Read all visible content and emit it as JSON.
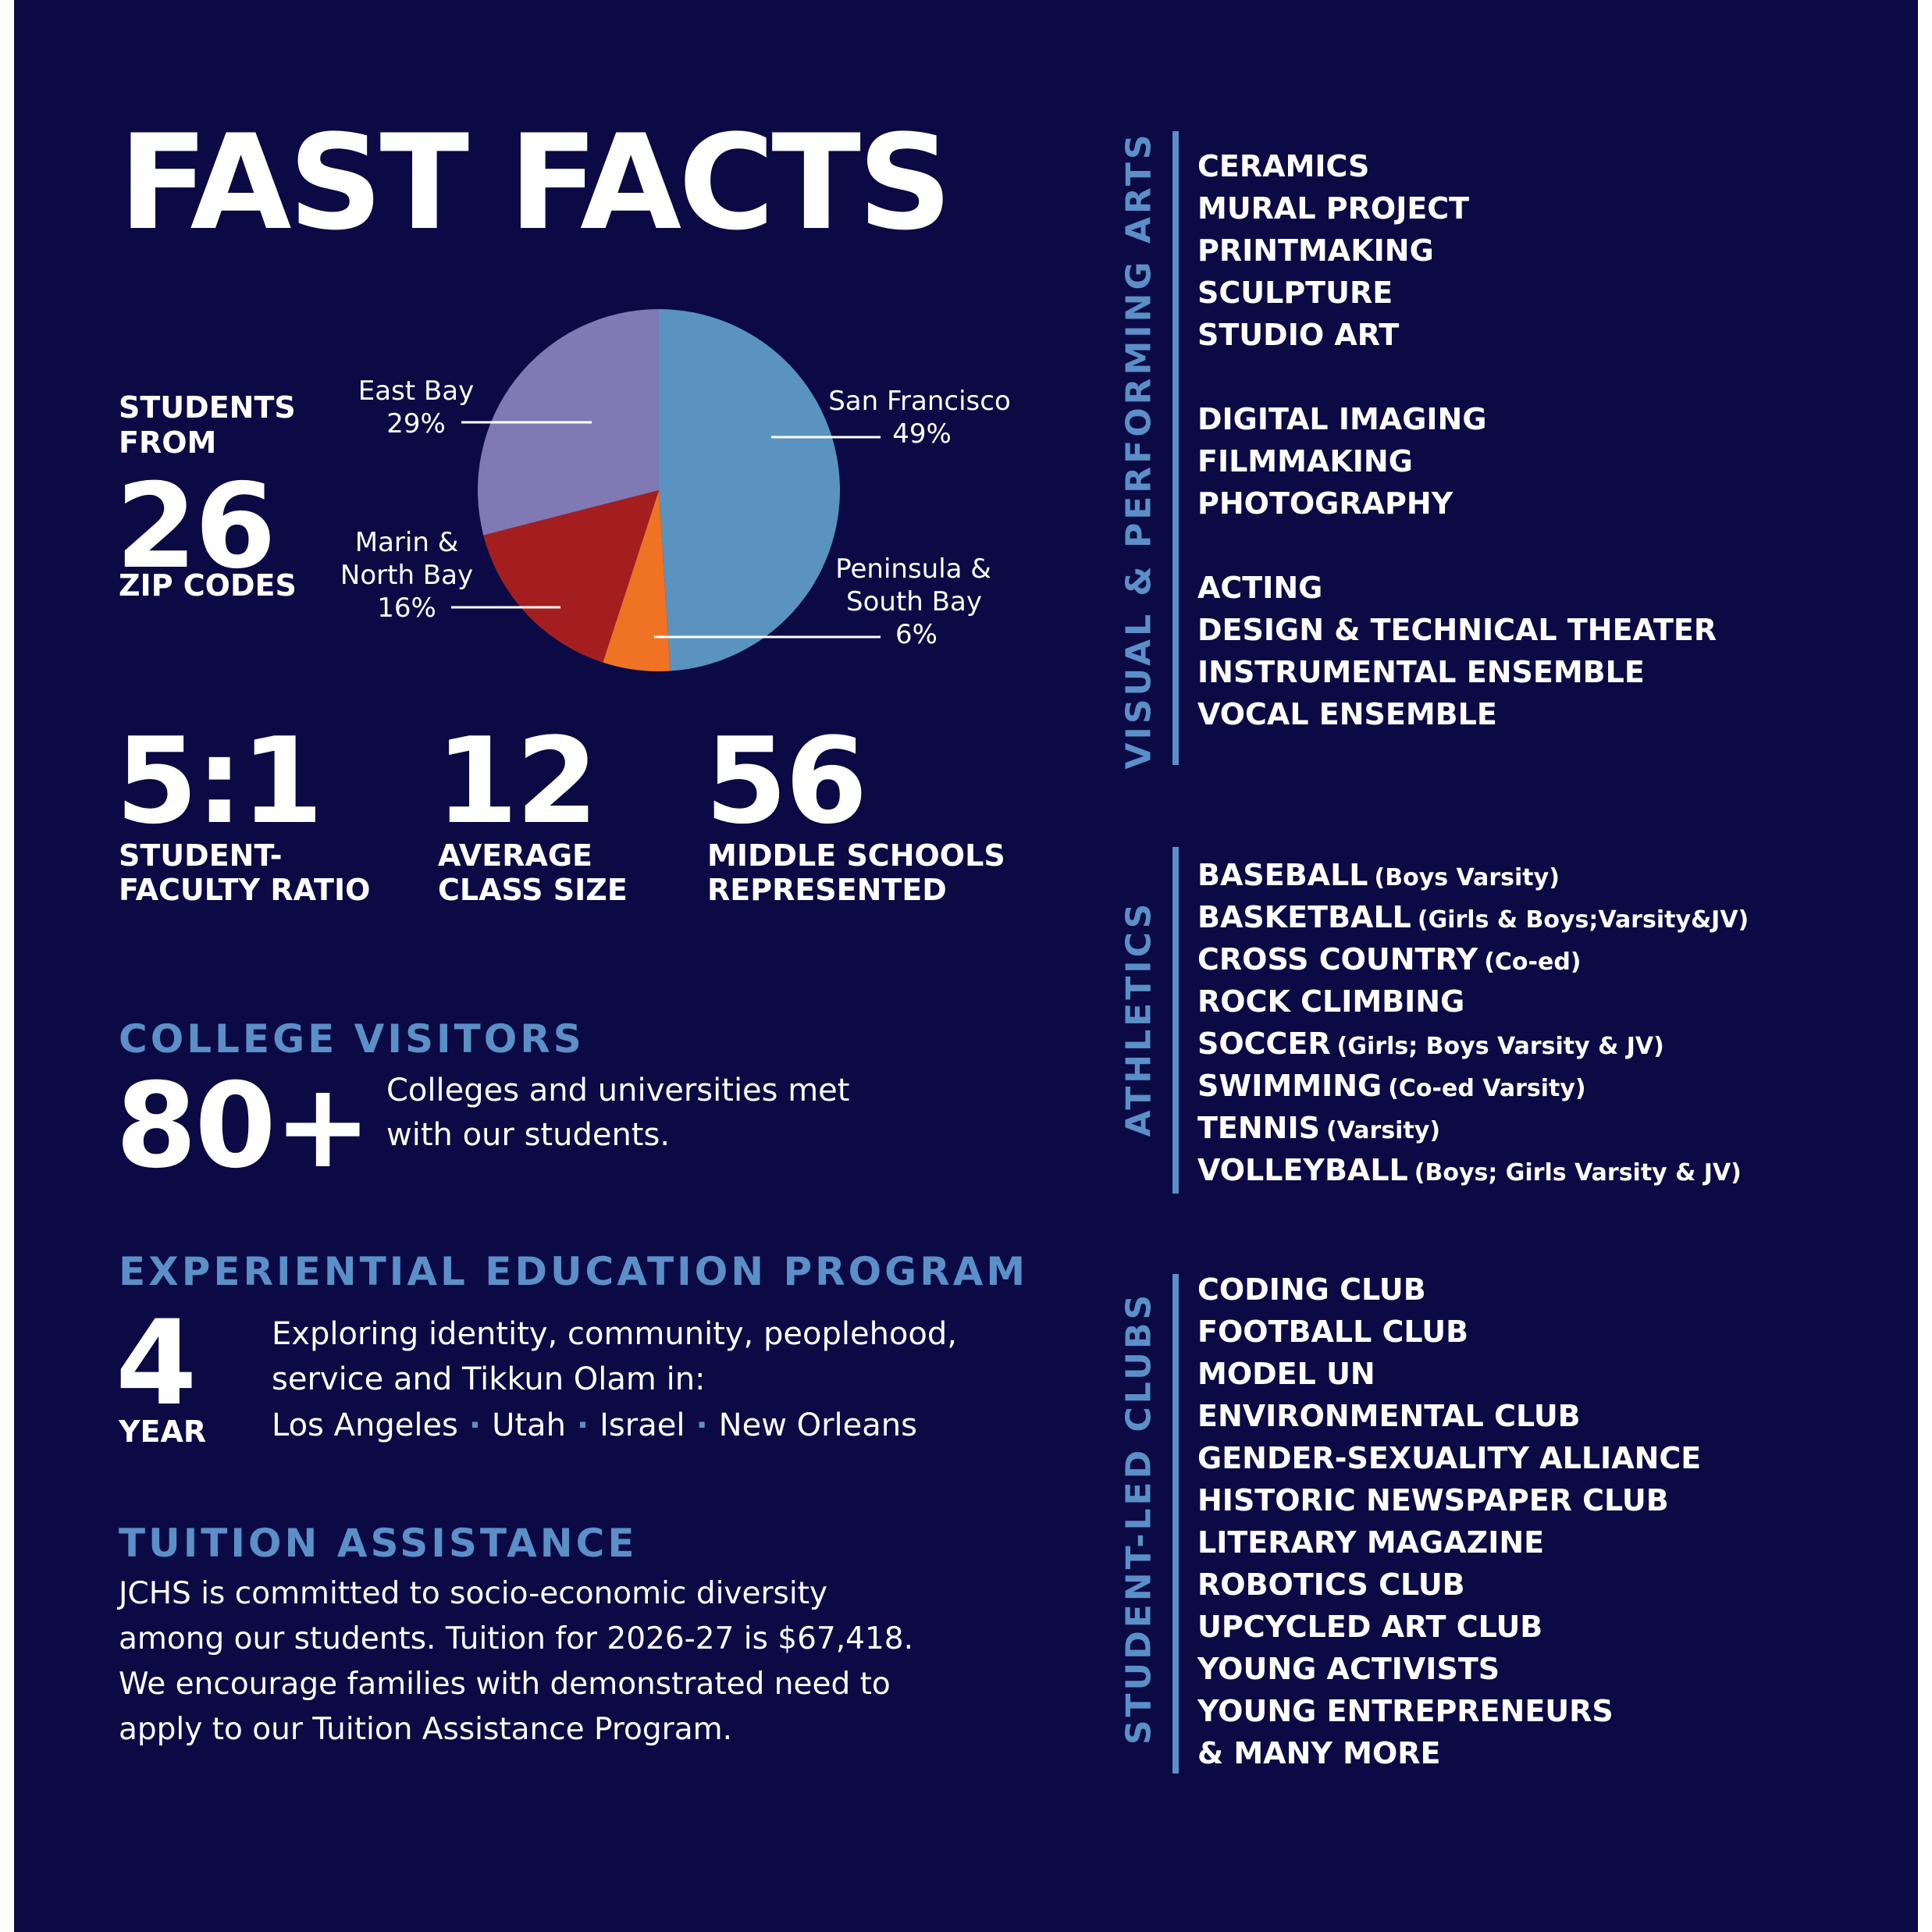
{
  "title": "FAST FACTS",
  "students": {
    "label_top_1": "STUDENTS",
    "label_top_2": "FROM",
    "number": "26",
    "label_bottom": "ZIP CODES"
  },
  "chart_data": {
    "type": "pie",
    "slices": [
      {
        "label_lines": [
          "San Francisco",
          "49%"
        ],
        "value": 49,
        "color": "#5a93c0"
      },
      {
        "label_lines": [
          "Peninsula &",
          "South Bay",
          "6%"
        ],
        "value": 6,
        "color": "#ef7322"
      },
      {
        "label_lines": [
          "Marin &",
          "North Bay",
          "16%"
        ],
        "value": 16,
        "color": "#a41e1f"
      },
      {
        "label_lines": [
          "East Bay",
          "29%"
        ],
        "value": 29,
        "color": "#8079b3"
      }
    ]
  },
  "stats": [
    {
      "number": "5:1",
      "line1": "STUDENT-",
      "line2": "FACULTY RATIO"
    },
    {
      "number": "12",
      "line1": "AVERAGE",
      "line2": "CLASS SIZE"
    },
    {
      "number": "56",
      "line1": "MIDDLE SCHOOLS",
      "line2": "REPRESENTED"
    }
  ],
  "college": {
    "heading": "COLLEGE VISITORS",
    "number": "80+",
    "text_1": "Colleges and universities met",
    "text_2": "with our students."
  },
  "experiential": {
    "heading": "EXPERIENTIAL EDUCATION PROGRAM",
    "number": "4",
    "unit": "YEAR",
    "text_1": "Exploring identity, community, peoplehood,",
    "text_2": "service and Tikkun Olam in:",
    "places": [
      "Los Angeles",
      "Utah",
      "Israel",
      "New Orleans"
    ]
  },
  "tuition": {
    "heading": "TUITION ASSISTANCE",
    "lines": [
      "JCHS is committed to socio-economic diversity",
      "among our students. Tuition for 2026-27 is $67,418.",
      "We encourage families with demonstrated need to",
      "apply to our Tuition Assistance Program."
    ]
  },
  "arts": {
    "label": "VISUAL & PERFORMING ARTS",
    "groups": [
      [
        "CERAMICS",
        "MURAL PROJECT",
        "PRINTMAKING",
        "SCULPTURE",
        "STUDIO ART"
      ],
      [
        "DIGITAL IMAGING",
        "FILMMAKING",
        "PHOTOGRAPHY"
      ],
      [
        "ACTING",
        "DESIGN & TECHNICAL THEATER",
        "INSTRUMENTAL ENSEMBLE",
        "VOCAL ENSEMBLE"
      ]
    ]
  },
  "athletics": {
    "label": "ATHLETICS",
    "items": [
      {
        "name": "BASEBALL",
        "detail": "(Boys Varsity)"
      },
      {
        "name": "BASKETBALL",
        "detail": "(Girls & Boys;Varsity&JV)"
      },
      {
        "name": "CROSS COUNTRY",
        "detail": "(Co-ed)"
      },
      {
        "name": "ROCK CLIMBING",
        "detail": ""
      },
      {
        "name": "SOCCER",
        "detail": "(Girls; Boys Varsity & JV)"
      },
      {
        "name": "SWIMMING",
        "detail": "(Co-ed Varsity)"
      },
      {
        "name": "TENNIS",
        "detail": "(Varsity)"
      },
      {
        "name": "VOLLEYBALL",
        "detail": "(Boys; Girls Varsity & JV)"
      }
    ]
  },
  "clubs": {
    "label": "STUDENT-LED CLUBS",
    "items": [
      "CODING CLUB",
      "FOOTBALL CLUB",
      "MODEL UN",
      "ENVIRONMENTAL CLUB",
      "GENDER-SEXUALITY ALLIANCE",
      "HISTORIC NEWSPAPER CLUB",
      "LITERARY MAGAZINE",
      "ROBOTICS CLUB",
      "UPCYCLED ART CLUB",
      "YOUNG ACTIVISTS",
      "YOUNG ENTREPRENEURS",
      "& MANY MORE"
    ]
  }
}
